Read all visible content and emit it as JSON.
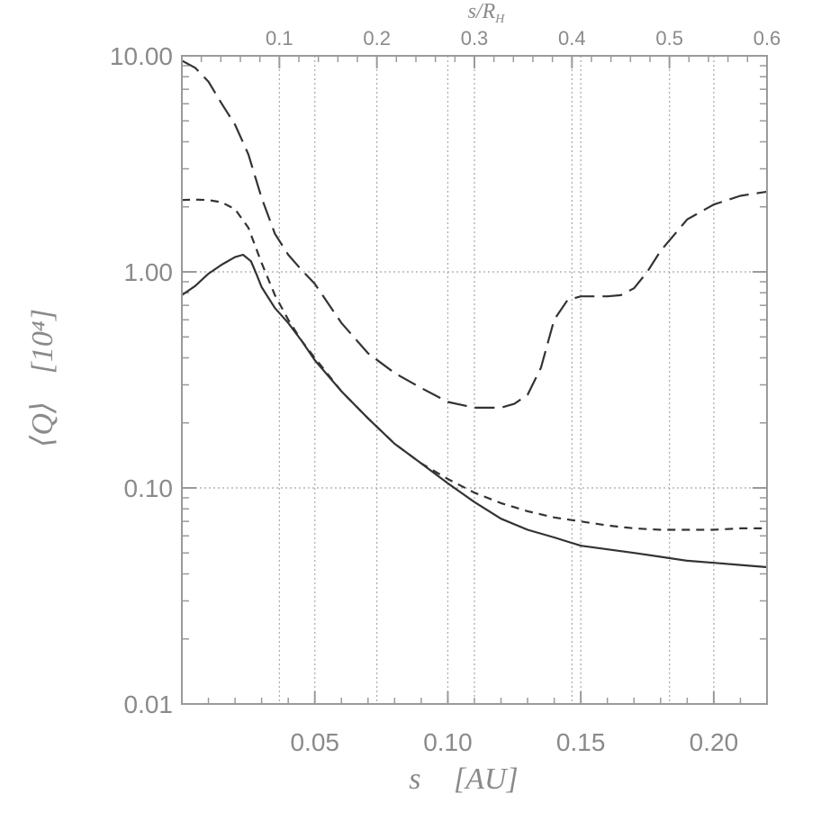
{
  "chart_data": {
    "type": "line",
    "xlabel_symbol": "s",
    "xlabel_unit": "[AU]",
    "ylabel_symbol": "⟨Q⟩",
    "ylabel_unit": "[10⁴]",
    "top_xlabel": "s/R",
    "top_xlabel_sub": "H",
    "x_scale": "linear",
    "y_scale": "log",
    "xlim": [
      0.0,
      0.22
    ],
    "ylim": [
      0.01,
      10.0
    ],
    "top_xlim": [
      0.0,
      0.6
    ],
    "grid": true,
    "x_ticks": [
      {
        "value": 0.05,
        "label": "0.05"
      },
      {
        "value": 0.1,
        "label": "0.10"
      },
      {
        "value": 0.15,
        "label": "0.15"
      },
      {
        "value": 0.2,
        "label": "0.20"
      }
    ],
    "y_ticks": [
      {
        "value": 0.01,
        "label": "0.01"
      },
      {
        "value": 0.1,
        "label": "0.10"
      },
      {
        "value": 1.0,
        "label": "1.00"
      },
      {
        "value": 10.0,
        "label": "10.00"
      }
    ],
    "top_x_ticks": [
      {
        "value": 0.1,
        "label": "0.1"
      },
      {
        "value": 0.2,
        "label": "0.2"
      },
      {
        "value": 0.3,
        "label": "0.3"
      },
      {
        "value": 0.4,
        "label": "0.4"
      },
      {
        "value": 0.5,
        "label": "0.5"
      },
      {
        "value": 0.6,
        "label": "0.6"
      }
    ],
    "series": [
      {
        "style": "solid",
        "x": [
          0.0,
          0.005,
          0.01,
          0.015,
          0.02,
          0.023,
          0.026,
          0.028,
          0.03,
          0.035,
          0.04,
          0.045,
          0.05,
          0.06,
          0.07,
          0.08,
          0.09,
          0.1,
          0.11,
          0.12,
          0.13,
          0.14,
          0.15,
          0.16,
          0.17,
          0.18,
          0.19,
          0.2,
          0.21,
          0.22
        ],
        "y": [
          0.78,
          0.86,
          0.98,
          1.08,
          1.17,
          1.2,
          1.12,
          0.98,
          0.85,
          0.68,
          0.58,
          0.48,
          0.39,
          0.28,
          0.21,
          0.16,
          0.13,
          0.105,
          0.086,
          0.072,
          0.064,
          0.059,
          0.054,
          0.052,
          0.05,
          0.048,
          0.046,
          0.045,
          0.044,
          0.043
        ]
      },
      {
        "style": "short-dash",
        "x": [
          0.0,
          0.005,
          0.01,
          0.015,
          0.02,
          0.025,
          0.03,
          0.035,
          0.04,
          0.045,
          0.05,
          0.06,
          0.07,
          0.08,
          0.09,
          0.1,
          0.11,
          0.12,
          0.13,
          0.14,
          0.15,
          0.16,
          0.17,
          0.18,
          0.19,
          0.2,
          0.21,
          0.22
        ],
        "y": [
          2.15,
          2.16,
          2.15,
          2.1,
          1.95,
          1.6,
          1.1,
          0.78,
          0.6,
          0.48,
          0.4,
          0.28,
          0.21,
          0.16,
          0.13,
          0.11,
          0.095,
          0.085,
          0.078,
          0.073,
          0.07,
          0.067,
          0.065,
          0.064,
          0.064,
          0.064,
          0.065,
          0.065
        ]
      },
      {
        "style": "long-dash",
        "x": [
          0.0,
          0.005,
          0.01,
          0.015,
          0.02,
          0.025,
          0.03,
          0.035,
          0.04,
          0.045,
          0.05,
          0.06,
          0.07,
          0.08,
          0.09,
          0.1,
          0.11,
          0.12,
          0.125,
          0.13,
          0.135,
          0.14,
          0.145,
          0.15,
          0.155,
          0.16,
          0.165,
          0.17,
          0.175,
          0.18,
          0.19,
          0.2,
          0.21,
          0.22
        ],
        "y": [
          9.5,
          8.8,
          7.6,
          6.0,
          4.8,
          3.5,
          2.2,
          1.5,
          1.2,
          1.02,
          0.88,
          0.58,
          0.42,
          0.34,
          0.29,
          0.25,
          0.235,
          0.235,
          0.245,
          0.27,
          0.36,
          0.6,
          0.74,
          0.77,
          0.77,
          0.77,
          0.78,
          0.84,
          1.0,
          1.25,
          1.75,
          2.05,
          2.25,
          2.35
        ]
      }
    ]
  }
}
